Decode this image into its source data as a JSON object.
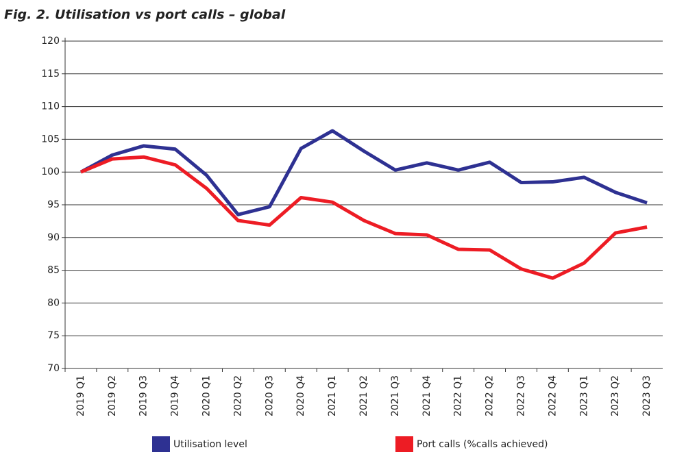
{
  "chart_data": {
    "type": "line",
    "title": "Fig. 2. Utilisation vs port calls – global",
    "categories": [
      "2019 Q1",
      "2019 Q2",
      "2019 Q3",
      "2019 Q4",
      "2020 Q1",
      "2020 Q2",
      "2020 Q3",
      "2020 Q4",
      "2021 Q1",
      "2021 Q2",
      "2021 Q3",
      "2021 Q4",
      "2022 Q1",
      "2022 Q2",
      "2022 Q3",
      "2022 Q4",
      "2023 Q1",
      "2023 Q2",
      "2023 Q3"
    ],
    "series": [
      {
        "name": "Utilisation level",
        "color": "#2e3192",
        "values": [
          100,
          102.6,
          104.0,
          103.5,
          99.5,
          93.5,
          94.7,
          103.6,
          106.3,
          103.2,
          100.3,
          101.4,
          100.3,
          101.5,
          98.4,
          98.5,
          99.2,
          96.9,
          95.3
        ]
      },
      {
        "name": "Port calls (%calls achieved)",
        "color": "#ed1c24",
        "values": [
          100,
          102.0,
          102.3,
          101.1,
          97.5,
          92.6,
          91.9,
          96.1,
          95.4,
          92.6,
          90.6,
          90.4,
          88.2,
          88.1,
          85.2,
          83.8,
          86.1,
          90.7,
          91.6
        ]
      }
    ],
    "ylim": [
      70,
      120
    ],
    "yticks": [
      70,
      75,
      80,
      85,
      90,
      95,
      100,
      105,
      110,
      115,
      120
    ],
    "grid": true
  }
}
